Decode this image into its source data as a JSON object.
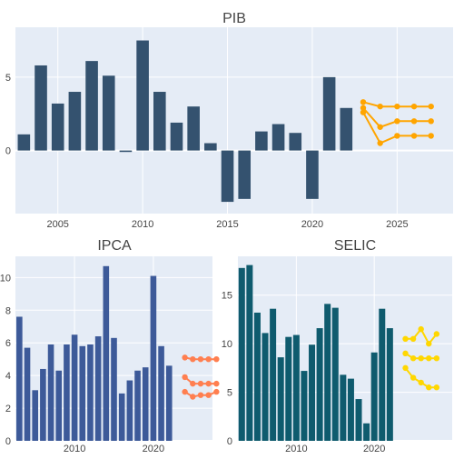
{
  "colors": {
    "background": "#ffffff",
    "plot_bg": "#e5ecf6",
    "grid": "#ffffff",
    "text": "#444444",
    "title": "#444444"
  },
  "chart_data": [
    {
      "type": "bar",
      "title": "PIB",
      "xlim": [
        2002.5,
        2028.3
      ],
      "ylim": [
        -4.3,
        8.4
      ],
      "x_ticks": [
        2005,
        2010,
        2015,
        2020,
        2025
      ],
      "y_ticks": [
        0,
        5
      ],
      "grid": true,
      "bar_color": "#34526f",
      "years": [
        2003,
        2004,
        2005,
        2006,
        2007,
        2008,
        2009,
        2010,
        2011,
        2012,
        2013,
        2014,
        2015,
        2016,
        2017,
        2018,
        2019,
        2020,
        2021,
        2022
      ],
      "values": [
        1.1,
        5.8,
        3.2,
        4.0,
        6.1,
        5.1,
        -0.1,
        7.5,
        4.0,
        1.9,
        3.0,
        0.5,
        -3.5,
        -3.3,
        1.3,
        1.8,
        1.2,
        -3.3,
        5.0,
        2.9
      ],
      "line_color": "#ffa500",
      "projections": [
        {
          "x": [
            2023,
            2024,
            2025,
            2026,
            2027
          ],
          "values": [
            3.3,
            3.0,
            3.0,
            3.0,
            3.0
          ]
        },
        {
          "x": [
            2023,
            2024,
            2025,
            2026,
            2027
          ],
          "values": [
            2.9,
            1.6,
            2.0,
            2.0,
            2.0
          ]
        },
        {
          "x": [
            2023,
            2024,
            2025,
            2026,
            2027
          ],
          "values": [
            2.6,
            0.5,
            1.0,
            1.0,
            1.0
          ]
        }
      ]
    },
    {
      "type": "bar",
      "title": "IPCA",
      "xlim": [
        2002.5,
        2027.5
      ],
      "ylim": [
        0,
        11.3
      ],
      "x_ticks": [
        2010,
        2020
      ],
      "y_ticks": [
        0,
        2,
        4,
        6,
        8,
        10
      ],
      "grid": true,
      "bar_color": "#3d5a99",
      "years": [
        2003,
        2004,
        2005,
        2006,
        2007,
        2008,
        2009,
        2010,
        2011,
        2012,
        2013,
        2014,
        2015,
        2016,
        2017,
        2018,
        2019,
        2020,
        2021,
        2022,
        2023
      ],
      "values": [
        7.6,
        5.7,
        3.1,
        4.4,
        5.9,
        4.3,
        5.9,
        6.5,
        5.8,
        5.9,
        6.4,
        10.7,
        6.3,
        2.9,
        3.7,
        4.3,
        4.5,
        10.1,
        5.8,
        4.6,
        null
      ],
      "line_color": "#ff7f50",
      "projections": [
        {
          "x": [
            2024,
            2025,
            2026,
            2027,
            2028
          ],
          "values": [
            5.1,
            5.0,
            5.0,
            5.0,
            5.0
          ]
        },
        {
          "x": [
            2024,
            2025,
            2026,
            2027,
            2028
          ],
          "values": [
            3.9,
            3.5,
            3.5,
            3.5,
            3.5
          ]
        },
        {
          "x": [
            2024,
            2025,
            2026,
            2027,
            2028
          ],
          "values": [
            3.0,
            2.7,
            2.8,
            2.8,
            3.0
          ]
        }
      ]
    },
    {
      "type": "bar",
      "title": "SELIC",
      "xlim": [
        2002.5,
        2030.0
      ],
      "ylim": [
        0,
        19.0
      ],
      "x_ticks": [
        2010,
        2020
      ],
      "y_ticks": [
        0,
        5,
        10,
        15
      ],
      "grid": true,
      "bar_color": "#0f5b6e",
      "years": [
        2003,
        2004,
        2005,
        2006,
        2007,
        2008,
        2009,
        2010,
        2011,
        2012,
        2013,
        2014,
        2015,
        2016,
        2017,
        2018,
        2019,
        2020,
        2021,
        2022,
        2023
      ],
      "values": [
        17.8,
        18.1,
        13.2,
        11.1,
        13.6,
        8.6,
        10.7,
        10.9,
        7.2,
        9.9,
        11.6,
        14.1,
        13.7,
        6.8,
        6.4,
        4.3,
        1.8,
        9.1,
        13.6,
        11.6,
        null
      ],
      "line_color": "#ffd700",
      "projections": [
        {
          "x": [
            2024,
            2025,
            2026,
            2027,
            2028
          ],
          "values": [
            10.5,
            10.5,
            11.5,
            10.0,
            11.0
          ]
        },
        {
          "x": [
            2024,
            2025,
            2026,
            2027,
            2028
          ],
          "values": [
            9.0,
            8.5,
            8.5,
            8.5,
            8.5
          ]
        },
        {
          "x": [
            2024,
            2025,
            2026,
            2027,
            2028
          ],
          "values": [
            7.5,
            6.5,
            6.0,
            5.5,
            5.5
          ]
        }
      ]
    }
  ]
}
